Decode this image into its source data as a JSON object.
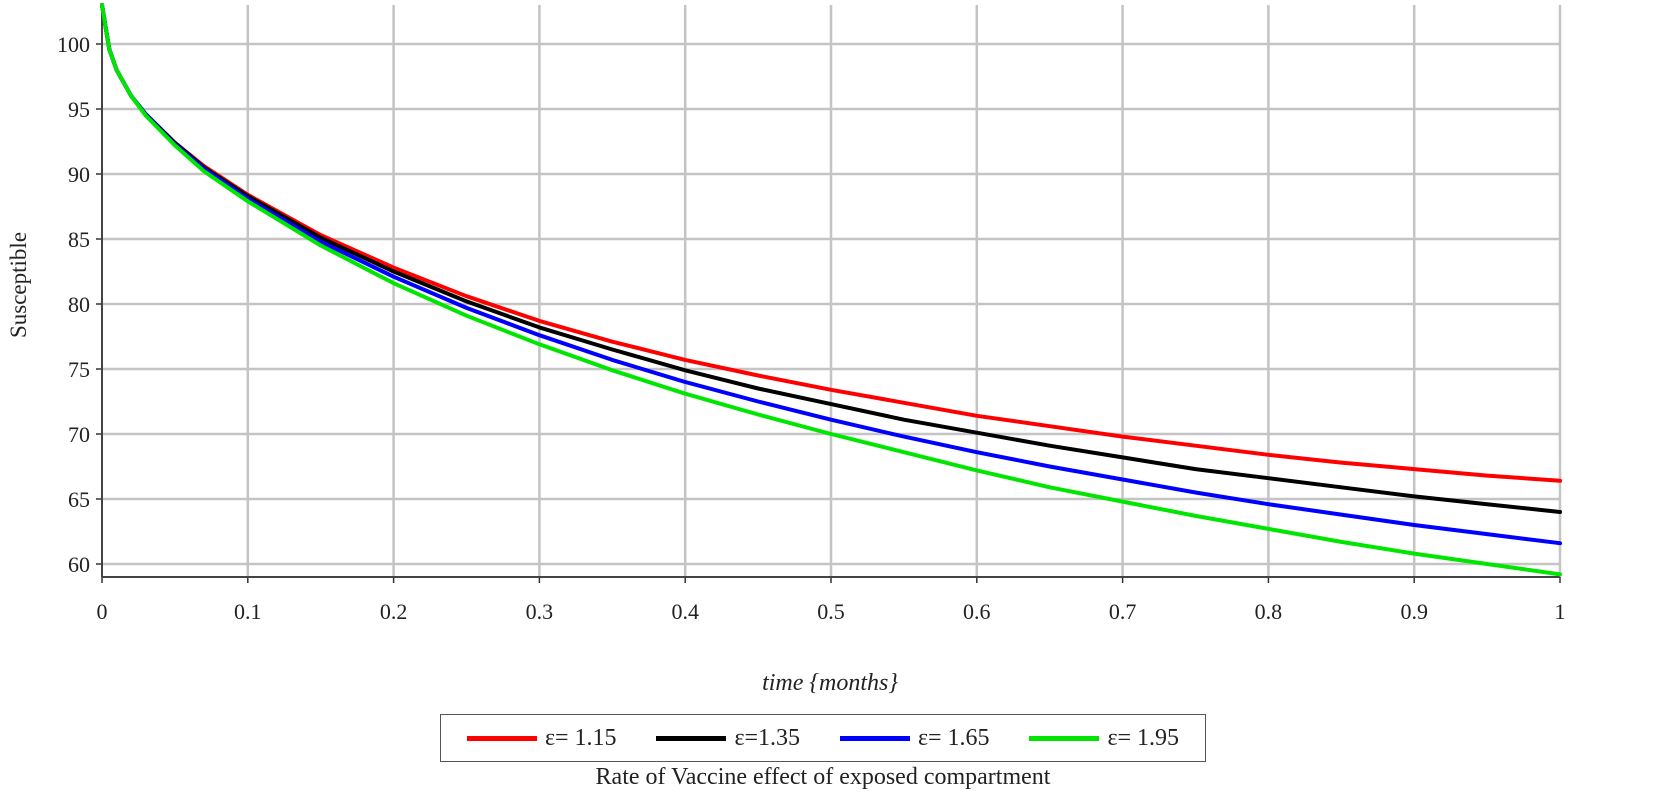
{
  "chart_data": {
    "type": "line",
    "title": "",
    "xlabel": "time {months}",
    "ylabel": "Susceptible",
    "xlim": [
      0,
      1
    ],
    "ylim": [
      59,
      103
    ],
    "x_ticks": [
      "0",
      "0.1",
      "0.2",
      "0.3",
      "0.4",
      "0.5",
      "0.6",
      "0.7",
      "0.8",
      "0.9",
      "1"
    ],
    "y_ticks": [
      "60",
      "65",
      "70",
      "75",
      "80",
      "85",
      "90",
      "95",
      "100"
    ],
    "grid": true,
    "legend_position": "bottom",
    "legend_title": "Rate of Vaccine effect of exposed compartment",
    "x": [
      0,
      0.005,
      0.01,
      0.02,
      0.03,
      0.05,
      0.07,
      0.1,
      0.15,
      0.2,
      0.25,
      0.3,
      0.35,
      0.4,
      0.45,
      0.5,
      0.55,
      0.6,
      0.65,
      0.7,
      0.75,
      0.8,
      0.85,
      0.9,
      0.95,
      1.0
    ],
    "series": [
      {
        "name": "ε= 1.15",
        "color": "#ff0000",
        "values": [
          103,
          99.6,
          98.0,
          96.0,
          94.6,
          92.4,
          90.6,
          88.4,
          85.3,
          82.8,
          80.6,
          78.7,
          77.1,
          75.7,
          74.5,
          73.4,
          72.4,
          71.4,
          70.6,
          69.8,
          69.1,
          68.4,
          67.8,
          67.3,
          66.8,
          66.4
        ]
      },
      {
        "name": "ε=1.35",
        "color": "#000000",
        "values": [
          103,
          99.6,
          98.0,
          96.0,
          94.6,
          92.4,
          90.5,
          88.3,
          85.1,
          82.5,
          80.2,
          78.2,
          76.5,
          74.9,
          73.5,
          72.3,
          71.1,
          70.1,
          69.1,
          68.2,
          67.3,
          66.6,
          65.9,
          65.2,
          64.6,
          64.0
        ]
      },
      {
        "name": "ε= 1.65",
        "color": "#0000ff",
        "values": [
          103,
          99.6,
          98.0,
          96.0,
          94.6,
          92.3,
          90.4,
          88.1,
          84.8,
          82.1,
          79.7,
          77.6,
          75.7,
          74.0,
          72.5,
          71.1,
          69.8,
          68.6,
          67.5,
          66.5,
          65.5,
          64.6,
          63.8,
          63.0,
          62.3,
          61.6
        ]
      },
      {
        "name": "ε= 1.95",
        "color": "#00e600",
        "values": [
          103,
          99.6,
          98.0,
          96.0,
          94.5,
          92.2,
          90.2,
          87.9,
          84.5,
          81.6,
          79.1,
          76.9,
          74.9,
          73.1,
          71.5,
          70.0,
          68.6,
          67.2,
          65.9,
          64.8,
          63.7,
          62.7,
          61.7,
          60.8,
          60.0,
          59.2
        ]
      }
    ]
  }
}
